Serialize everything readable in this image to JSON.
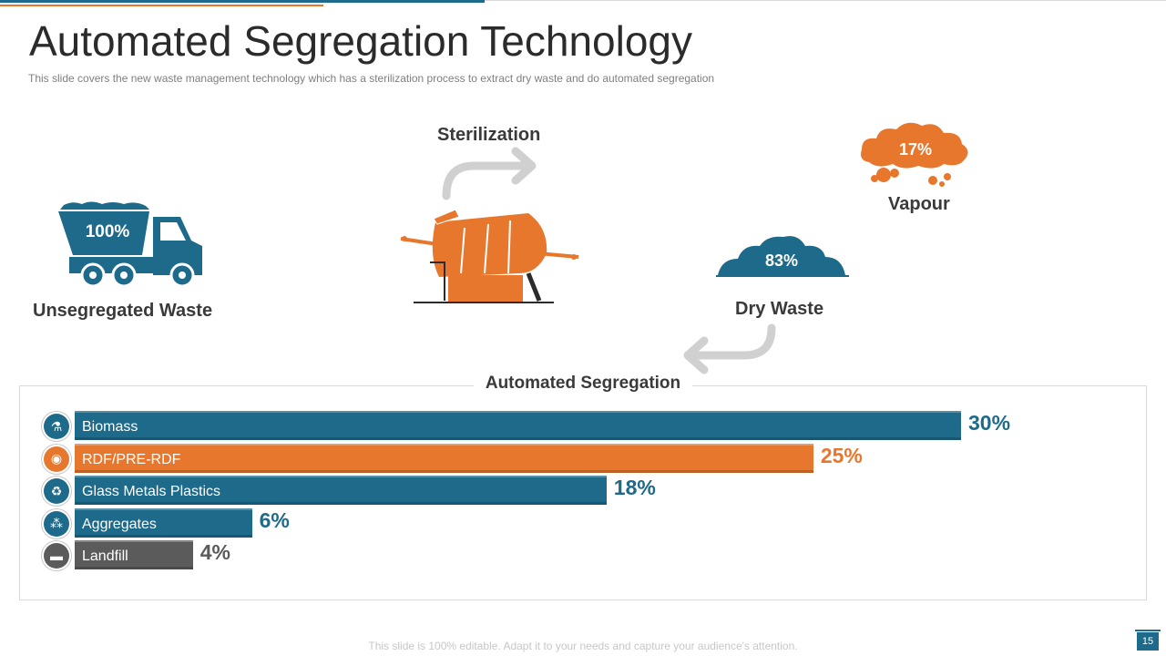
{
  "title": "Automated Segregation Technology",
  "subtitle": "This slide covers the new waste management technology which has a sterilization process to extract dry waste and do automated segregation",
  "process": {
    "truck": {
      "value": "100%",
      "label": "Unsegregated Waste"
    },
    "sterilization": {
      "label": "Sterilization"
    },
    "vapour": {
      "value": "17%",
      "label": "Vapour"
    },
    "dry_waste": {
      "value": "83%",
      "label": "Dry Waste"
    }
  },
  "segregation_title": "Automated Segregation",
  "chart_data": {
    "type": "bar",
    "orientation": "horizontal",
    "title": "Automated Segregation",
    "categories": [
      "Biomass",
      "RDF/PRE-RDF",
      "Glass Metals Plastics",
      "Aggregates",
      "Landfill"
    ],
    "values": [
      30,
      25,
      18,
      6,
      4
    ],
    "value_labels": [
      "30%",
      "25%",
      "18%",
      "6%",
      "4%"
    ],
    "colors": [
      "#1E6A8A",
      "#E8772E",
      "#1E6A8A",
      "#1E6A8A",
      "#5B5B5B"
    ],
    "icons": [
      "flask-icon",
      "rss-icon",
      "recycle-icon",
      "molecule-icon",
      "truck-icon"
    ],
    "xlim": [
      0,
      30
    ]
  },
  "colors": {
    "blue": "#1E6A8A",
    "orange": "#E8772E",
    "gray": "#5B5B5B"
  },
  "footer": "This slide is 100% editable. Adapt it to your needs and capture your audience's attention.",
  "page_number": "15"
}
